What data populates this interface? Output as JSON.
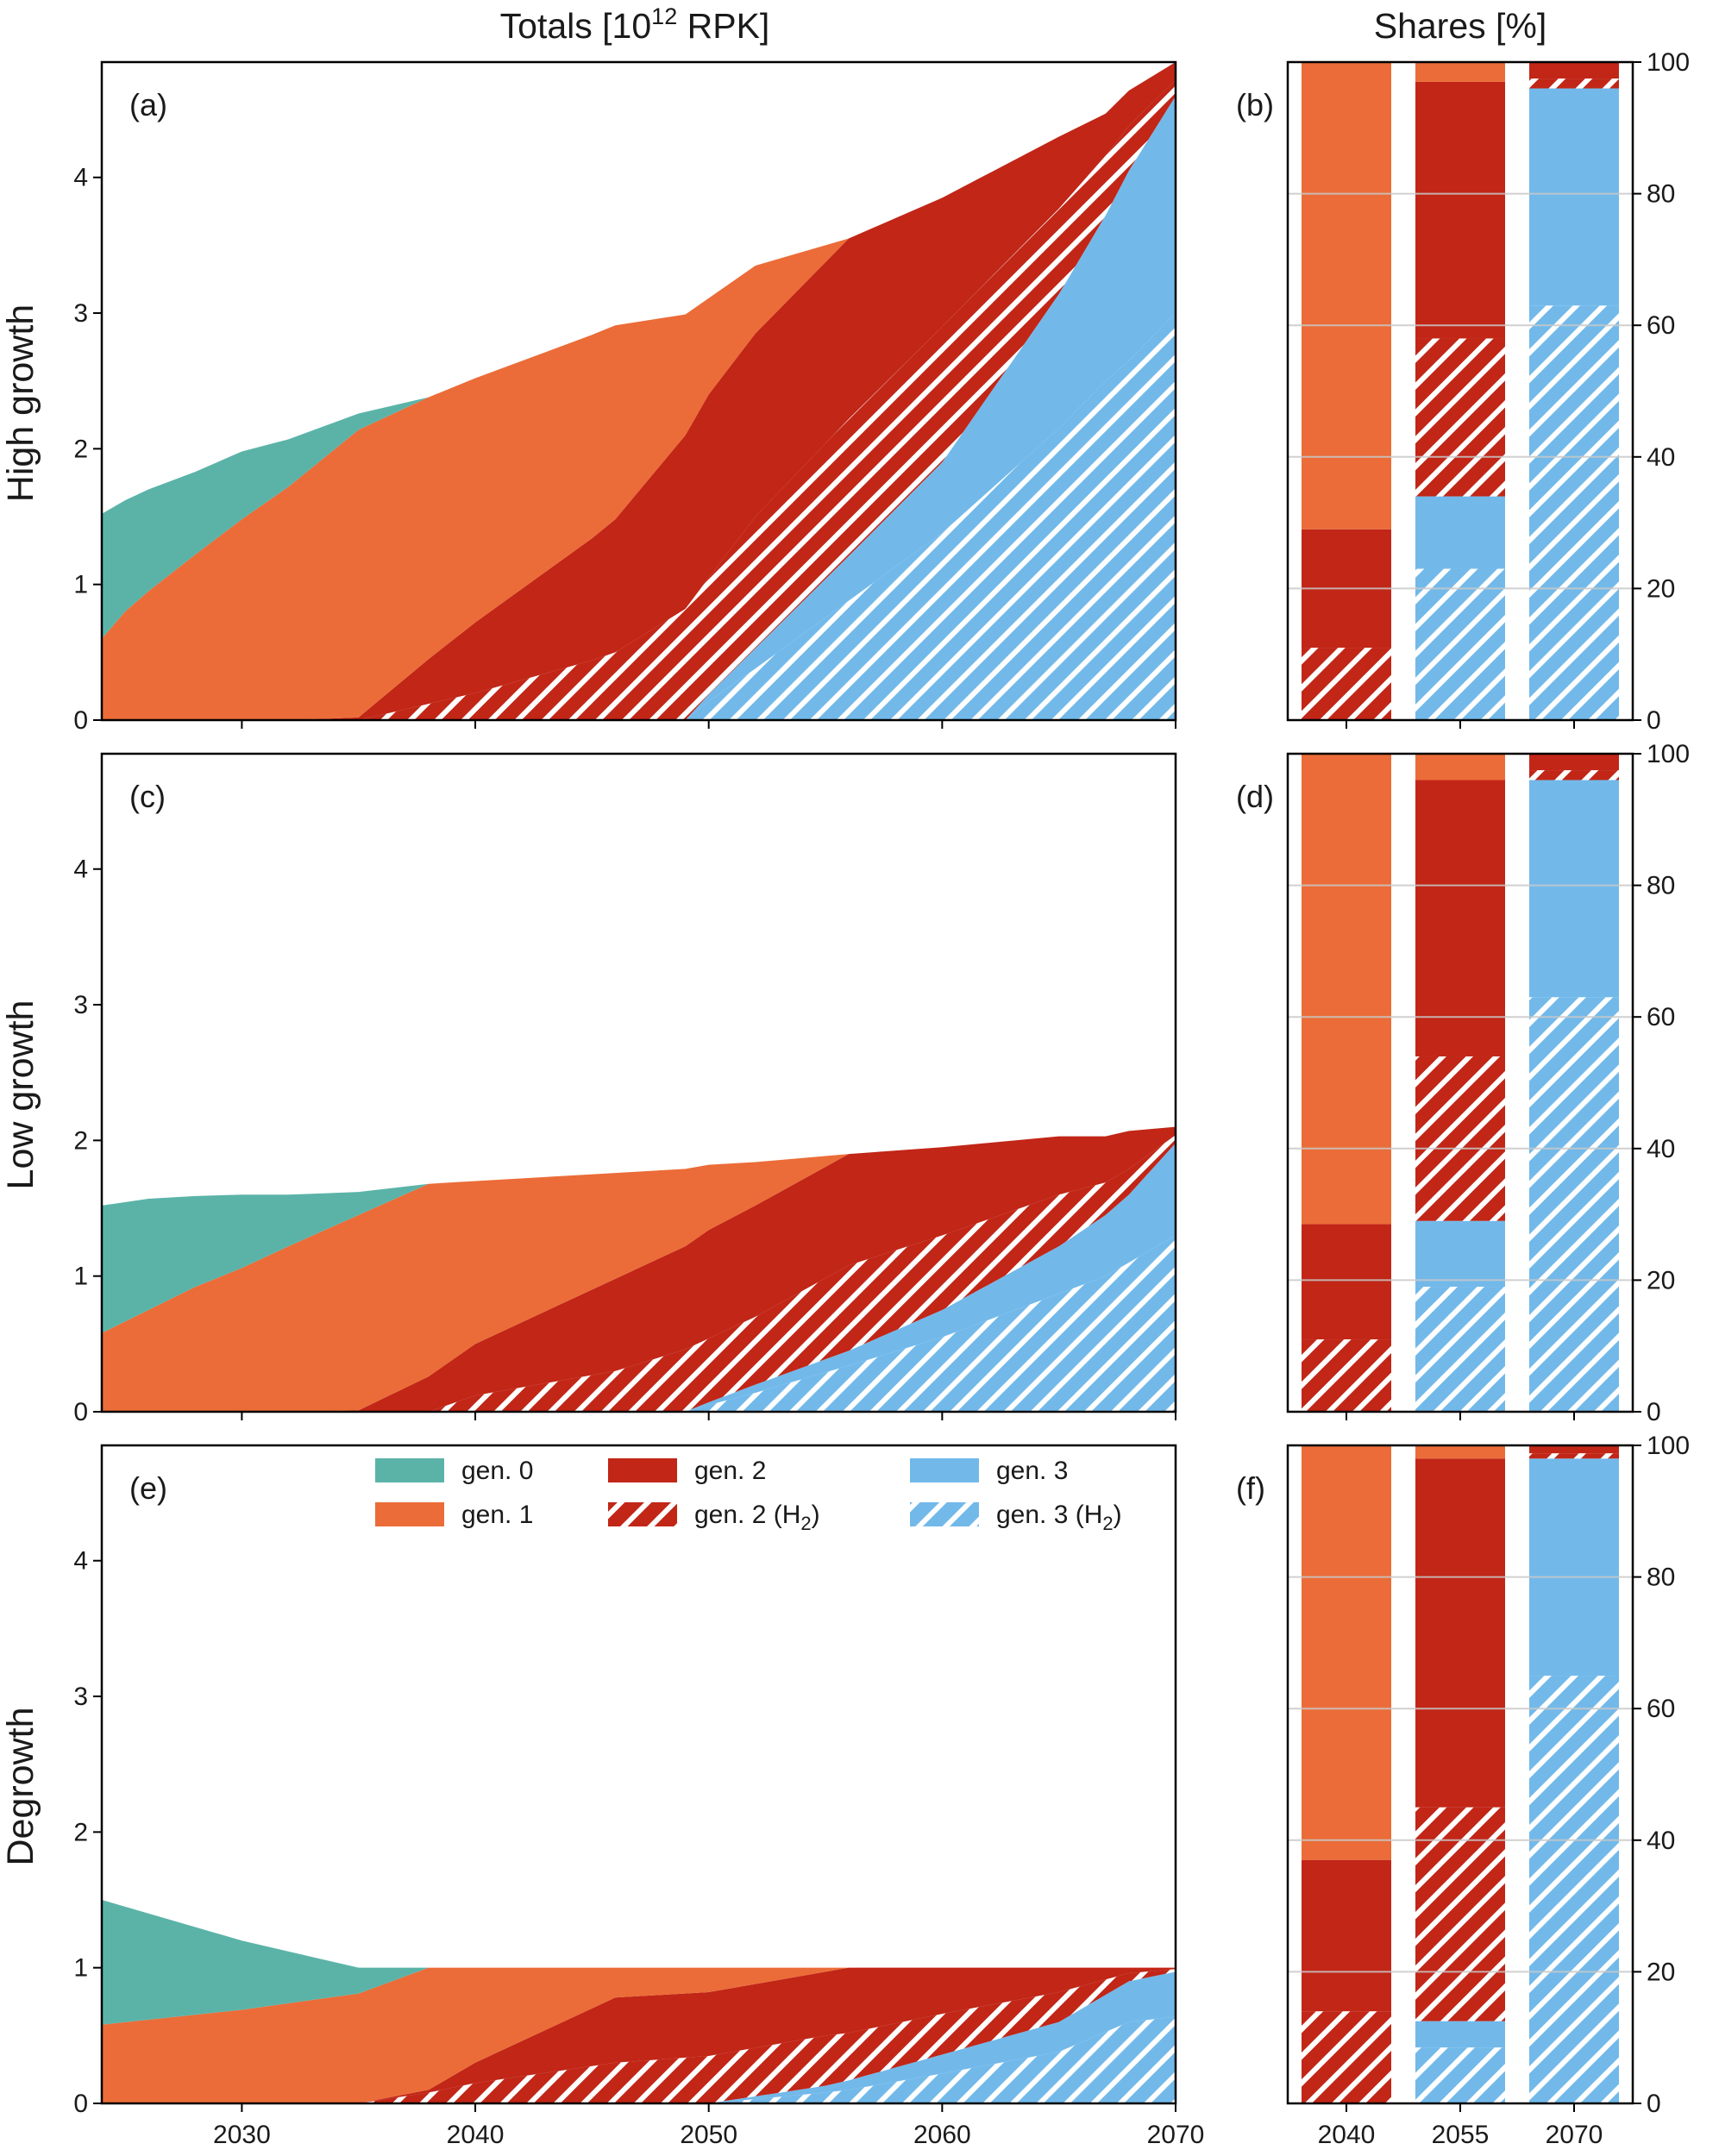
{
  "colors": {
    "gen0": "#5bb3a8",
    "gen1": "#eb6c38",
    "gen2": "#c12617",
    "gen3": "#72b9ea",
    "axis": "#000000",
    "grid": "#c8c8c8"
  },
  "chart_data": {
    "type": "area",
    "column_titles": {
      "totals": "Totals [10",
      "totals_exponent": "12",
      "totals_unit": " RPK]",
      "shares": "Shares [%]"
    },
    "legend": [
      {
        "key": "gen0",
        "label": "gen. 0",
        "hatched": false
      },
      {
        "key": "gen1",
        "label": "gen. 1",
        "hatched": false
      },
      {
        "key": "gen2",
        "label": "gen. 2",
        "hatched": false
      },
      {
        "key": "gen2h2",
        "label": "gen. 2 (H",
        "subscript": "2",
        "suffix": ")",
        "hatched": true,
        "base": "gen2"
      },
      {
        "key": "gen3",
        "label": "gen. 3",
        "hatched": false
      },
      {
        "key": "gen3h2",
        "label": "gen. 3 (H",
        "subscript": "2",
        "suffix": ")",
        "hatched": true,
        "base": "gen3"
      }
    ],
    "area_axes": {
      "xlim": [
        2024,
        2070
      ],
      "ylim": [
        0,
        4.85
      ],
      "xticks": [
        "2030",
        "2040",
        "2050",
        "2060",
        "2070"
      ],
      "xtick_values": [
        2030,
        2040,
        2050,
        2060,
        2070
      ],
      "yticks": [
        "0",
        "1",
        "2",
        "3",
        "4"
      ],
      "ytick_values": [
        0,
        1,
        2,
        3,
        4
      ]
    },
    "bar_axes": {
      "categories": [
        "2040",
        "2055",
        "2070"
      ],
      "ylim": [
        0,
        100
      ],
      "yticks": [
        "0",
        "20",
        "40",
        "60",
        "80",
        "100"
      ],
      "ytick_values": [
        0,
        20,
        40,
        60,
        80,
        100
      ],
      "grid": true
    },
    "scenarios": [
      {
        "name": "High growth",
        "area_panel": "(a)",
        "bar_panel": "(b)",
        "area": {
          "x": [
            2024,
            2025,
            2026,
            2028,
            2030,
            2032,
            2035,
            2038,
            2040,
            2045,
            2046,
            2049,
            2050,
            2052,
            2056,
            2060,
            2065,
            2067,
            2068,
            2070
          ],
          "gen3h2": [
            0,
            0,
            0,
            0,
            0,
            0,
            0,
            0,
            0,
            0,
            0,
            0,
            0.14,
            0.38,
            0.88,
            1.38,
            2.15,
            2.5,
            2.65,
            3.0
          ],
          "gen3": [
            0,
            0,
            0,
            0,
            0,
            0,
            0,
            0,
            0,
            0,
            0,
            0,
            0.05,
            0.15,
            0.33,
            0.52,
            0.99,
            1.22,
            1.4,
            1.6
          ],
          "gen2h2": [
            0,
            0,
            0,
            0,
            0,
            0,
            0,
            0.12,
            0.2,
            0.44,
            0.5,
            0.82,
            0.86,
            0.97,
            1.01,
            1.0,
            0.63,
            0.44,
            0.33,
            0.12
          ],
          "gen2": [
            0,
            0,
            0,
            0,
            0,
            0,
            0.02,
            0.33,
            0.52,
            0.9,
            0.98,
            1.28,
            1.35,
            1.35,
            1.33,
            0.95,
            0.53,
            0.31,
            0.26,
            0.13
          ],
          "gen1": [
            0.6,
            0.8,
            0.95,
            1.22,
            1.48,
            1.72,
            2.12,
            1.93,
            1.8,
            1.5,
            1.43,
            0.89,
            0.71,
            0.5,
            0.0,
            0,
            0,
            0,
            0,
            0
          ],
          "gen0": [
            0.92,
            0.82,
            0.75,
            0.61,
            0.5,
            0.35,
            0.12,
            0.0,
            0,
            0,
            0,
            0,
            0,
            0,
            0,
            0,
            0,
            0,
            0,
            0
          ]
        },
        "bars": {
          "2040": {
            "gen2h2": 11,
            "gen3h2": 0,
            "gen3": 0,
            "gen2": 18,
            "gen1": 71,
            "gen0": 0
          },
          "2055": {
            "gen3h2": 23,
            "gen3": 11,
            "gen2h2": 24,
            "gen2": 39,
            "gen1": 3,
            "gen0": 0
          },
          "2070": {
            "gen3h2": 63,
            "gen3": 33,
            "gen2h2": 1.5,
            "gen2": 2.5,
            "gen1": 0,
            "gen0": 0
          }
        }
      },
      {
        "name": "Low growth",
        "area_panel": "(c)",
        "bar_panel": "(d)",
        "area": {
          "x": [
            2024,
            2026,
            2028,
            2030,
            2032,
            2035,
            2038,
            2040,
            2046,
            2049,
            2050,
            2052,
            2056,
            2060,
            2065,
            2067,
            2068,
            2070
          ],
          "gen3h2": [
            0,
            0,
            0,
            0,
            0,
            0,
            0,
            0,
            0,
            0,
            0.05,
            0.14,
            0.34,
            0.55,
            0.87,
            1.0,
            1.1,
            1.3
          ],
          "gen3": [
            0,
            0,
            0,
            0,
            0,
            0,
            0,
            0,
            0,
            0,
            0.02,
            0.06,
            0.11,
            0.2,
            0.35,
            0.45,
            0.5,
            0.68
          ],
          "gen2h2": [
            0,
            0,
            0,
            0,
            0,
            0,
            0,
            0.12,
            0.3,
            0.46,
            0.47,
            0.5,
            0.63,
            0.55,
            0.38,
            0.24,
            0.19,
            0.06
          ],
          "gen2": [
            0,
            0,
            0,
            0,
            0,
            0.01,
            0.26,
            0.38,
            0.68,
            0.76,
            0.8,
            0.82,
            0.82,
            0.65,
            0.43,
            0.34,
            0.28,
            0.06
          ],
          "gen1": [
            0.58,
            0.75,
            0.92,
            1.06,
            1.22,
            1.44,
            1.42,
            1.2,
            0.78,
            0.57,
            0.48,
            0.32,
            0.0,
            0,
            0,
            0,
            0,
            0
          ],
          "gen0": [
            0.94,
            0.82,
            0.67,
            0.54,
            0.38,
            0.17,
            0.0,
            0,
            0,
            0,
            0,
            0,
            0,
            0,
            0,
            0,
            0,
            0
          ]
        },
        "bars": {
          "2040": {
            "gen2h2": 11,
            "gen3h2": 0,
            "gen3": 0,
            "gen2": 17.5,
            "gen1": 71.5,
            "gen0": 0
          },
          "2055": {
            "gen3h2": 19,
            "gen3": 10,
            "gen2h2": 25,
            "gen2": 42,
            "gen1": 4,
            "gen0": 0
          },
          "2070": {
            "gen3h2": 63,
            "gen3": 33,
            "gen2h2": 1.5,
            "gen2": 2.5,
            "gen1": 0,
            "gen0": 0
          }
        }
      },
      {
        "name": "Degrowth",
        "area_panel": "(e)",
        "bar_panel": "(f)",
        "area": {
          "x": [
            2024,
            2030,
            2035,
            2038,
            2040,
            2046,
            2050,
            2055,
            2056,
            2060,
            2065,
            2068,
            2070
          ],
          "gen3h2": [
            0,
            0,
            0,
            0,
            0,
            0,
            0,
            0.08,
            0.1,
            0.22,
            0.38,
            0.6,
            0.64
          ],
          "gen3": [
            0,
            0,
            0,
            0,
            0,
            0,
            0,
            0.05,
            0.07,
            0.14,
            0.22,
            0.3,
            0.33
          ],
          "gen2h2": [
            0,
            0,
            0,
            0.08,
            0.15,
            0.3,
            0.35,
            0.37,
            0.35,
            0.3,
            0.22,
            0.06,
            0.02
          ],
          "gen2": [
            0,
            0,
            0,
            0.02,
            0.15,
            0.48,
            0.47,
            0.47,
            0.48,
            0.34,
            0.18,
            0.04,
            0.01
          ],
          "gen1": [
            0.58,
            0.69,
            0.81,
            0.9,
            0.7,
            0.22,
            0.18,
            0.03,
            0.0,
            0,
            0,
            0,
            0
          ],
          "gen0": [
            0.92,
            0.51,
            0.19,
            0.0,
            0,
            0,
            0,
            0,
            0,
            0,
            0,
            0,
            0
          ]
        },
        "bars": {
          "2040": {
            "gen2h2": 14,
            "gen3h2": 0,
            "gen3": 0,
            "gen2": 23,
            "gen1": 63,
            "gen0": 0
          },
          "2055": {
            "gen3h2": 8.5,
            "gen3": 4,
            "gen2h2": 32.5,
            "gen2": 53,
            "gen1": 2,
            "gen0": 0
          },
          "2070": {
            "gen3h2": 65,
            "gen3": 33,
            "gen2h2": 0.8,
            "gen2": 1.2,
            "gen1": 0,
            "gen0": 0
          }
        }
      }
    ]
  }
}
